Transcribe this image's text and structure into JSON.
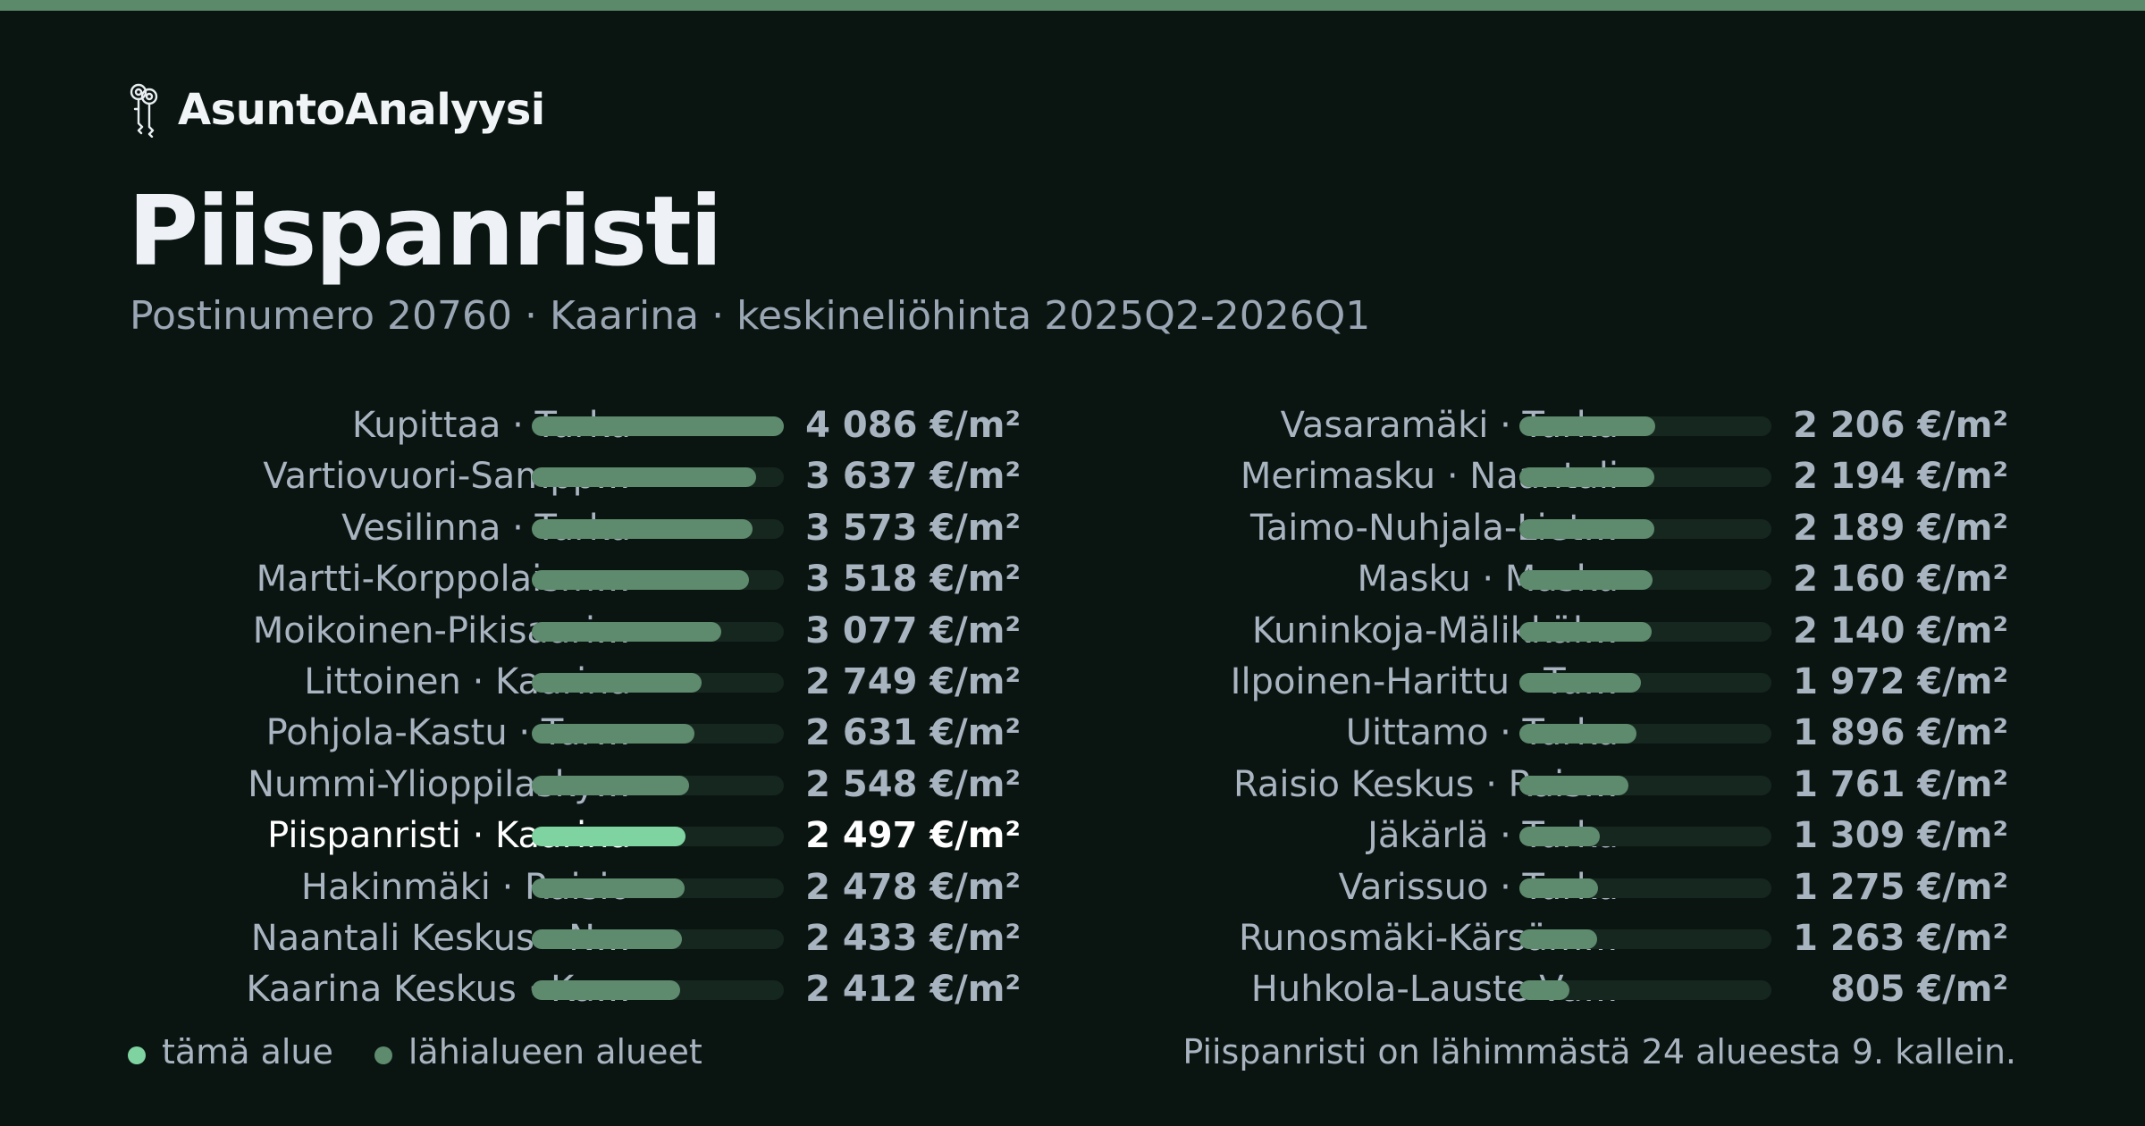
{
  "brand": {
    "name": "AsuntoAnalyysi",
    "icon": "keys-icon"
  },
  "page": {
    "title": "Piispanristi",
    "subtitle": "Postinumero 20760 · Kaarina · keskineliöhinta 2025Q2-2026Q1"
  },
  "colors": {
    "background": "#0a1512",
    "accent_bar": "#5b8a6a",
    "this_area": "#7fd3a0",
    "nearby_areas": "#5e8a6d"
  },
  "chart_data": {
    "type": "bar",
    "orientation": "horizontal",
    "unit": "€/m²",
    "max_value": 4086,
    "categories": [
      "Kupittaa · Turku",
      "Vartiovuori-Sampp…",
      "Vesilinna · Turku",
      "Martti-Korppolaism…",
      "Moikoinen-Pikisaari…",
      "Littoinen · Kaarina",
      "Pohjola-Kastu · Tur…",
      "Nummi-Ylioppilasky…",
      "Piispanristi · Kaarina",
      "Hakinmäki · Raisio",
      "Naantali Keskus · N…",
      "Kaarina Keskus · Ka…",
      "Vasaramäki · Turku",
      "Merimasku · Naantali",
      "Taimo-Nuhjala-Liet…",
      "Masku · Masku",
      "Kuninkoja-Mälikkäl…",
      "Ilpoinen-Harittu · Tu…",
      "Uittamo · Turku",
      "Raisio Keskus · Rais…",
      "Jäkärlä · Turku",
      "Varissuo · Turku",
      "Runosmäki-Kärsäm…",
      "Huhkola-Lauste-Va…"
    ],
    "values": [
      4086,
      3637,
      3573,
      3518,
      3077,
      2749,
      2631,
      2548,
      2497,
      2478,
      2433,
      2412,
      2206,
      2194,
      2189,
      2160,
      2140,
      1972,
      1896,
      1761,
      1309,
      1275,
      1263,
      805
    ],
    "value_labels": [
      "4 086 €/m²",
      "3 637 €/m²",
      "3 573 €/m²",
      "3 518 €/m²",
      "3 077 €/m²",
      "2 749 €/m²",
      "2 631 €/m²",
      "2 548 €/m²",
      "2 497 €/m²",
      "2 478 €/m²",
      "2 433 €/m²",
      "2 412 €/m²",
      "2 206 €/m²",
      "2 194 €/m²",
      "2 189 €/m²",
      "2 160 €/m²",
      "2 140 €/m²",
      "1 972 €/m²",
      "1 896 €/m²",
      "1 761 €/m²",
      "1 309 €/m²",
      "1 275 €/m²",
      "1 263 €/m²",
      "805 €/m²"
    ],
    "highlight_index": 8,
    "legend": {
      "this_area": "tämä alue",
      "nearby": "lähialueen alueet"
    }
  },
  "footnote": "Piispanristi on lähimmästä 24 alueesta 9. kallein."
}
